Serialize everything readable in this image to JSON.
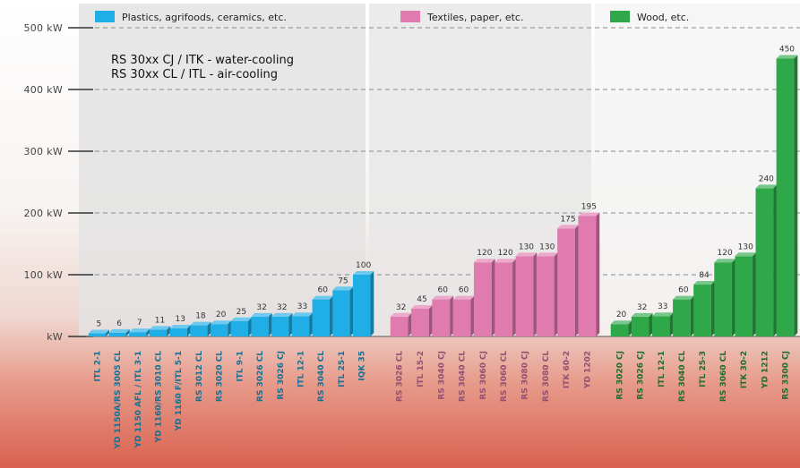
{
  "chart_data": {
    "type": "bar",
    "ylim": [
      0,
      500
    ],
    "y_ticks": [
      "kW",
      "100 kW",
      "200 kW",
      "300 kW",
      "400 kW",
      "500 kW"
    ],
    "grid": true,
    "annotations": [
      "RS 30xx CJ / ITK - water-cooling",
      "RS 30xx CL / ITL - air-cooling"
    ],
    "groups": [
      {
        "name": "Plastics, agrifoods, ceramics, etc.",
        "color": "#1faee5",
        "categories": [
          "ITL 2-1",
          "YD 1150A/RS 3005 CL",
          "YD 1150 AFL / ITL 3-1",
          "YD 1160/RS 3010 CL",
          "YD 1160 F/ITL 5-1",
          "RS 3012 CL",
          "RS 3020 CL",
          "ITL 9-1",
          "RS 3026 CL",
          "RS 3026 CJ",
          "ITL 12-1",
          "RS 3040 CL",
          "ITL 25-1",
          "IQK 35"
        ],
        "values": [
          5,
          6,
          7,
          11,
          13,
          18,
          20,
          25,
          32,
          32,
          33,
          60,
          75,
          100
        ]
      },
      {
        "name": "Textiles, paper, etc.",
        "color": "#e07bb0",
        "categories": [
          "RS 3026 CL",
          "ITL 15-2",
          "RS 3040 CJ",
          "RS 3040 CL",
          "RS 3060 CJ",
          "RS 3060 CL",
          "RS 3080 CJ",
          "RS 3080 CL",
          "ITK 60-2",
          "YD 1202"
        ],
        "values": [
          32,
          45,
          60,
          60,
          120,
          120,
          130,
          130,
          175,
          195
        ]
      },
      {
        "name": "Wood, etc.",
        "color": "#2fa84a",
        "categories": [
          "RS 3020 CJ",
          "RS 3026 CJ",
          "ITL 12-1",
          "RS 3040 CL",
          "ITL 25-3",
          "RS 3060 CL",
          "ITK 30-2",
          "YD 1212",
          "RS 3300 CJ"
        ],
        "values": [
          20,
          32,
          33,
          60,
          84,
          120,
          130,
          240,
          450
        ]
      }
    ]
  }
}
